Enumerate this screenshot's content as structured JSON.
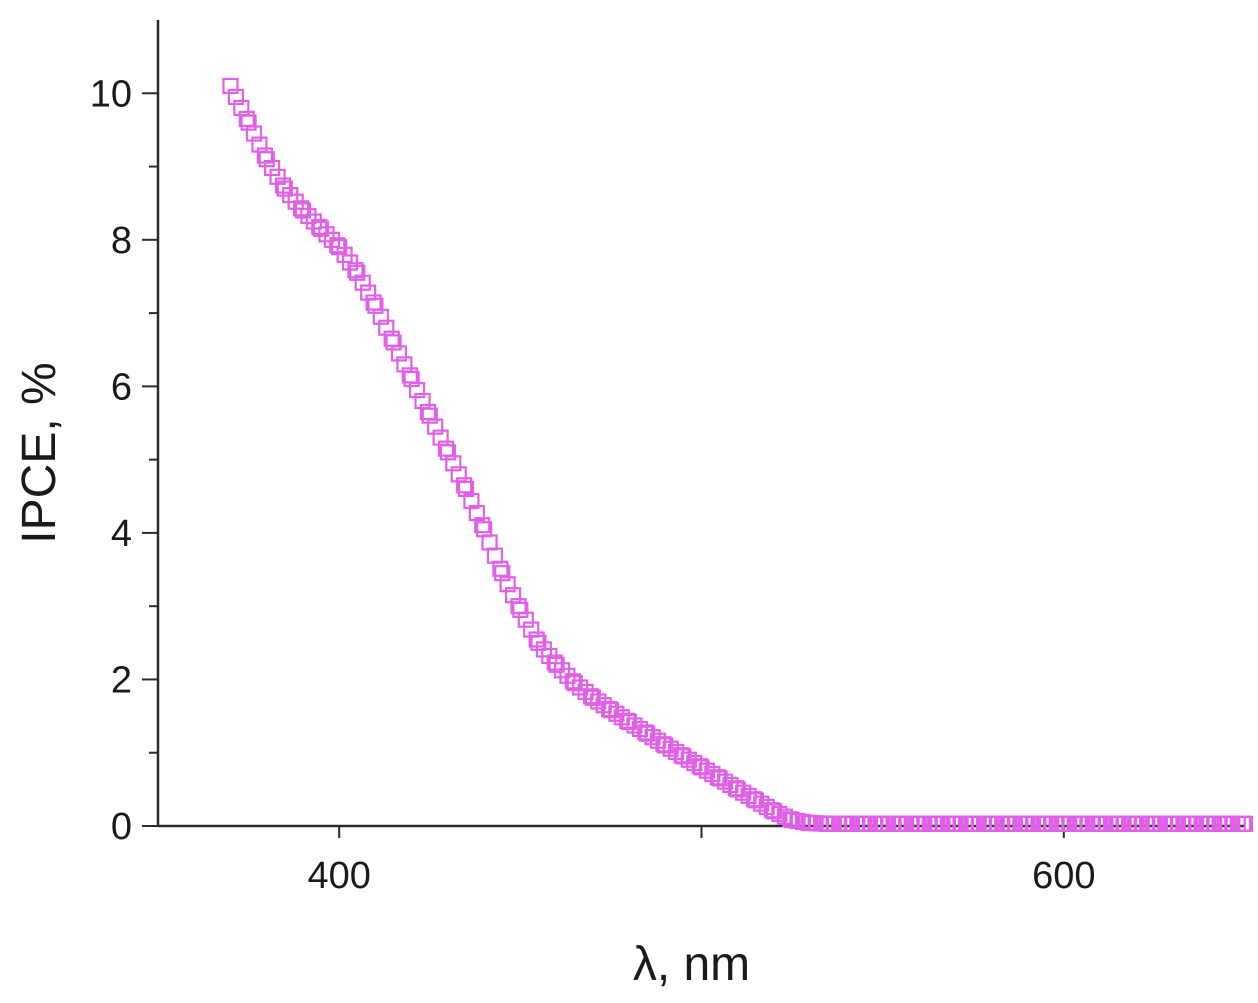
{
  "chart_data": {
    "type": "scatter",
    "title": "",
    "xlabel": "λ, nm",
    "ylabel": "IPCE, %",
    "xlim": [
      350,
      650
    ],
    "ylim": [
      0,
      11
    ],
    "x_ticks_major": [
      400,
      500,
      600
    ],
    "x_tick_labels": [
      {
        "value": 400,
        "label": "400"
      },
      {
        "value": 600,
        "label": "600"
      }
    ],
    "y_ticks_major": [
      0,
      2,
      4,
      6,
      8,
      10
    ],
    "y_tick_labels": [
      {
        "value": 0,
        "label": "0"
      },
      {
        "value": 2,
        "label": "2"
      },
      {
        "value": 4,
        "label": "4"
      },
      {
        "value": 6,
        "label": "6"
      },
      {
        "value": 8,
        "label": "8"
      },
      {
        "value": 10,
        "label": "10"
      }
    ],
    "y_ticks_minor": [
      1,
      3,
      5,
      7,
      9
    ],
    "grid": false,
    "marker": "open-square",
    "color": "#e060e8",
    "series": [
      {
        "x": [
          370,
          375,
          380,
          385,
          390,
          395,
          400,
          405,
          410,
          415,
          420,
          425,
          430,
          435,
          440,
          445,
          450,
          455,
          460,
          465,
          470,
          475,
          480,
          485,
          490,
          495,
          500,
          505,
          510,
          515,
          520,
          525,
          530,
          535,
          540,
          545,
          550,
          555,
          560,
          565,
          570,
          575,
          580,
          585,
          590,
          595,
          600,
          605,
          610,
          615,
          620,
          625,
          630,
          635,
          640,
          645,
          650
        ],
        "y": [
          10.1,
          9.6,
          9.1,
          8.7,
          8.4,
          8.15,
          7.9,
          7.55,
          7.1,
          6.6,
          6.1,
          5.6,
          5.1,
          4.6,
          4.05,
          3.45,
          2.95,
          2.5,
          2.2,
          1.95,
          1.75,
          1.58,
          1.42,
          1.26,
          1.1,
          0.95,
          0.8,
          0.65,
          0.5,
          0.35,
          0.2,
          0.08,
          0.04,
          0.03,
          0.03,
          0.03,
          0.03,
          0.03,
          0.03,
          0.03,
          0.03,
          0.03,
          0.03,
          0.03,
          0.03,
          0.03,
          0.03,
          0.03,
          0.03,
          0.03,
          0.03,
          0.03,
          0.03,
          0.03,
          0.03,
          0.03,
          0.03
        ]
      }
    ]
  }
}
